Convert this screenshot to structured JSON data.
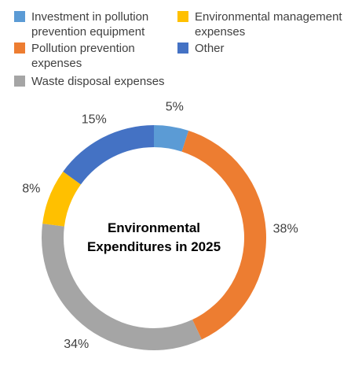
{
  "chart_data": {
    "type": "donut",
    "title": "Environmental Expenditures in 2025",
    "series": [
      {
        "name": "Investment in pollution prevention equipment",
        "color": "#5b9bd5",
        "values": [
          5
        ],
        "value_labels": [
          "5%"
        ]
      },
      {
        "name": "Pollution prevention expenses",
        "color": "#ed7d31",
        "values": [
          38
        ],
        "value_labels": [
          "38%"
        ]
      },
      {
        "name": "Waste disposal expenses",
        "color": "#a5a5a5",
        "values": [
          34
        ],
        "value_labels": [
          "34%"
        ]
      },
      {
        "name": "Environmental management expenses",
        "color": "#ffc000",
        "values": [
          8
        ],
        "value_labels": [
          "8%"
        ]
      },
      {
        "name": "Other",
        "color": "#4472c4",
        "values": [
          15
        ],
        "value_labels": [
          "15%"
        ]
      }
    ]
  }
}
